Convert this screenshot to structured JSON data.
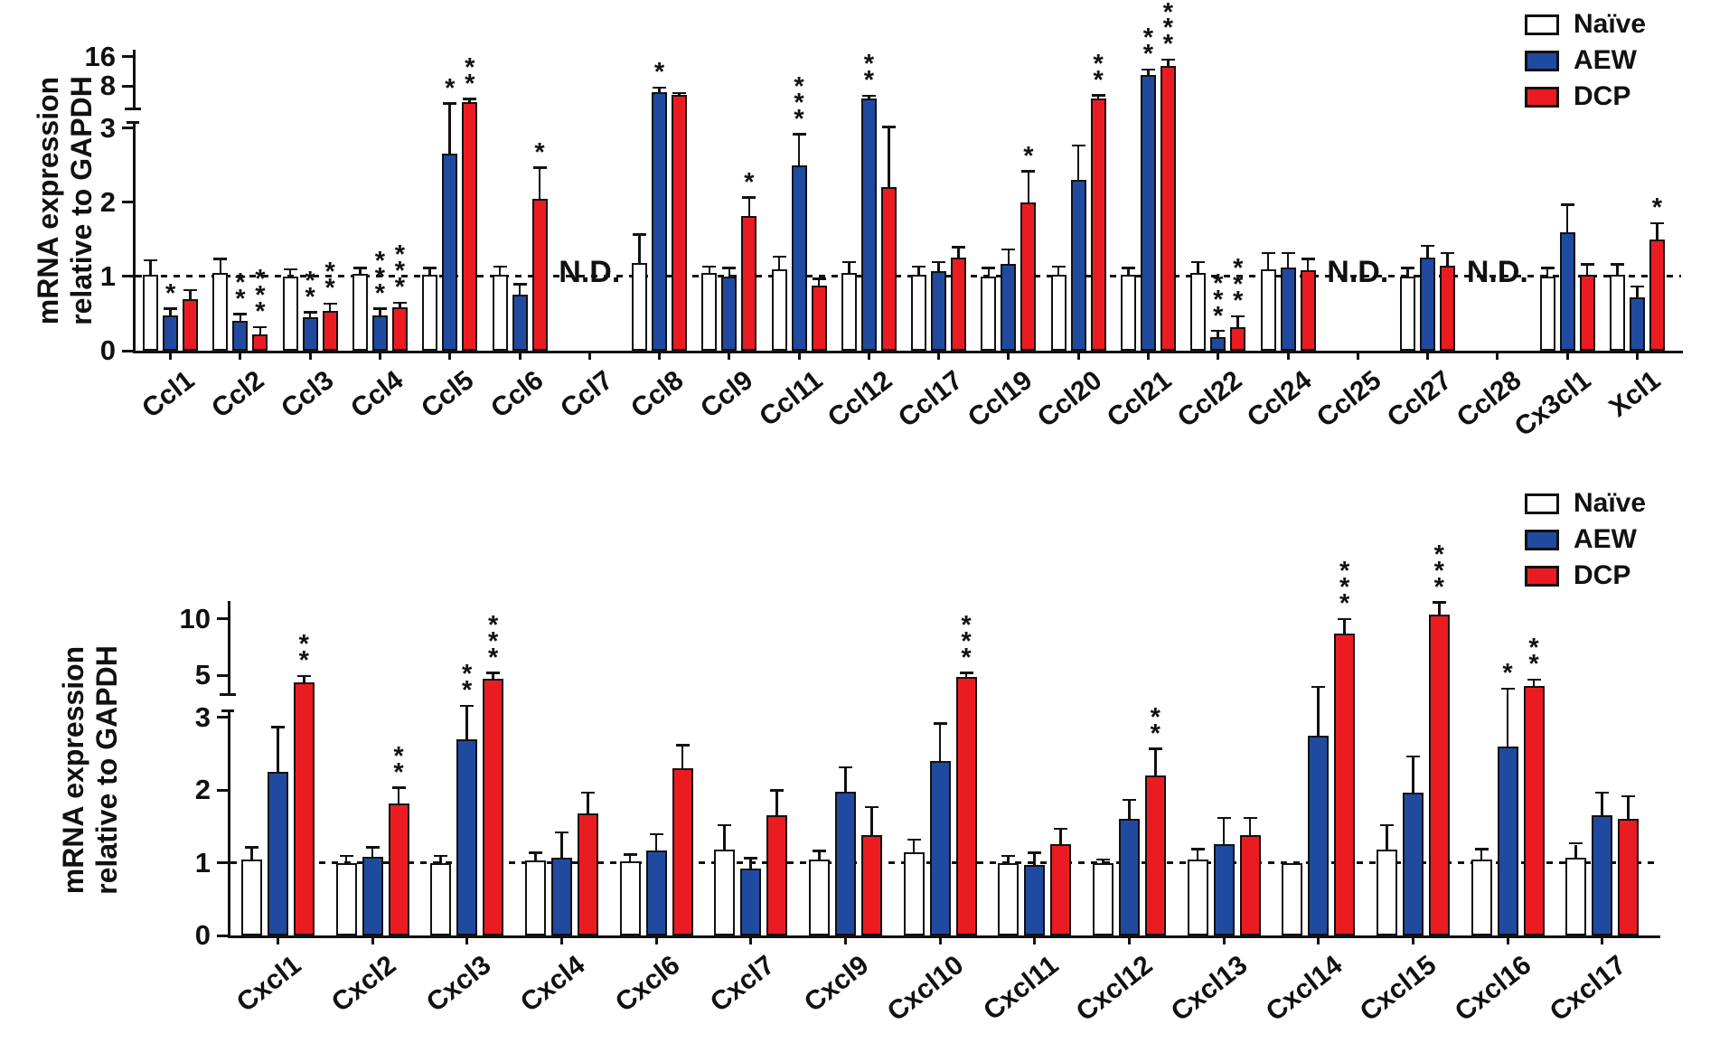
{
  "figure": {
    "background": "#ffffff"
  },
  "chart_data": [
    {
      "type": "bar",
      "ylabel_lines": [
        "mRNA expression",
        "relative to GAPDH"
      ],
      "ylabel": "mRNA expression relative to GAPDH",
      "yticks": [
        0,
        1,
        2,
        3,
        8,
        16
      ],
      "ylim": [
        0,
        18
      ],
      "axis_break": {
        "linear_max": 3,
        "upper_ticks": [
          8,
          16
        ]
      },
      "reference_line": 1,
      "grid": false,
      "legend_position": "top-right",
      "nd_text": "N.D.",
      "legend": [
        {
          "label": "Naïve",
          "color": "#ffffff"
        },
        {
          "label": "AEW",
          "color": "#1f4a9f"
        },
        {
          "label": "DCP",
          "color": "#ea1c22"
        }
      ],
      "groups": [
        {
          "label": "Ccl1",
          "bars": [
            {
              "v": 1.02,
              "e": 1.2
            },
            {
              "v": 0.47,
              "e": 0.55,
              "sig": "*"
            },
            {
              "v": 0.7,
              "e": 0.8
            }
          ]
        },
        {
          "label": "Ccl2",
          "bars": [
            {
              "v": 1.05,
              "e": 1.22
            },
            {
              "v": 0.4,
              "e": 0.48,
              "sig": "**"
            },
            {
              "v": 0.22,
              "e": 0.3,
              "sig": "***"
            }
          ]
        },
        {
          "label": "Ccl3",
          "bars": [
            {
              "v": 1.0,
              "e": 1.08
            },
            {
              "v": 0.45,
              "e": 0.5,
              "sig": "**"
            },
            {
              "v": 0.53,
              "e": 0.62,
              "sig": "**"
            }
          ]
        },
        {
          "label": "Ccl4",
          "bars": [
            {
              "v": 1.03,
              "e": 1.1
            },
            {
              "v": 0.48,
              "e": 0.55,
              "sig": "***"
            },
            {
              "v": 0.58,
              "e": 0.63,
              "sig": "***"
            }
          ]
        },
        {
          "label": "Ccl5",
          "bars": [
            {
              "v": 1.02,
              "e": 1.1
            },
            {
              "v": 2.65,
              "e": 5.2,
              "sig": "*"
            },
            {
              "v": 5.5,
              "e": 5.8,
              "sig": "**"
            }
          ]
        },
        {
          "label": "Ccl6",
          "bars": [
            {
              "v": 1.02,
              "e": 1.12
            },
            {
              "v": 0.75,
              "e": 0.88
            },
            {
              "v": 2.05,
              "e": 2.45,
              "sig": "*"
            }
          ]
        },
        {
          "label": "Ccl7",
          "nd": true
        },
        {
          "label": "Ccl8",
          "bars": [
            {
              "v": 1.18,
              "e": 1.55
            },
            {
              "v": 7.0,
              "e": 7.5,
              "sig": "*"
            },
            {
              "v": 6.5,
              "e": 6.6
            }
          ]
        },
        {
          "label": "Ccl9",
          "bars": [
            {
              "v": 1.05,
              "e": 1.12
            },
            {
              "v": 1.0,
              "e": 1.1
            },
            {
              "v": 1.82,
              "e": 2.05,
              "sig": "*"
            }
          ]
        },
        {
          "label": "Ccl11",
          "bars": [
            {
              "v": 1.1,
              "e": 1.25
            },
            {
              "v": 2.5,
              "e": 2.9,
              "sig": "***"
            },
            {
              "v": 0.88,
              "e": 0.95
            }
          ]
        },
        {
          "label": "Ccl12",
          "bars": [
            {
              "v": 1.05,
              "e": 1.18
            },
            {
              "v": 6.0,
              "e": 6.2,
              "sig": "**"
            },
            {
              "v": 2.2,
              "e": 3.0
            }
          ]
        },
        {
          "label": "Ccl17",
          "bars": [
            {
              "v": 1.02,
              "e": 1.12
            },
            {
              "v": 1.07,
              "e": 1.18
            },
            {
              "v": 1.25,
              "e": 1.38
            }
          ]
        },
        {
          "label": "Ccl19",
          "bars": [
            {
              "v": 1.0,
              "e": 1.1
            },
            {
              "v": 1.17,
              "e": 1.35
            },
            {
              "v": 2.0,
              "e": 2.4,
              "sig": "*"
            }
          ]
        },
        {
          "label": "Ccl20",
          "bars": [
            {
              "v": 1.02,
              "e": 1.12
            },
            {
              "v": 2.3,
              "e": 2.75
            },
            {
              "v": 6.0,
              "e": 6.3,
              "sig": "**"
            }
          ]
        },
        {
          "label": "Ccl21",
          "bars": [
            {
              "v": 1.02,
              "e": 1.1
            },
            {
              "v": 10.5,
              "e": 11.5,
              "sig": "**"
            },
            {
              "v": 13.0,
              "e": 14.5,
              "sig": "***"
            }
          ]
        },
        {
          "label": "Ccl22",
          "bars": [
            {
              "v": 1.05,
              "e": 1.18
            },
            {
              "v": 0.18,
              "e": 0.25,
              "sig": "***"
            },
            {
              "v": 0.32,
              "e": 0.45,
              "sig": "***"
            }
          ]
        },
        {
          "label": "Ccl24",
          "bars": [
            {
              "v": 1.1,
              "e": 1.3
            },
            {
              "v": 1.12,
              "e": 1.3
            },
            {
              "v": 1.08,
              "e": 1.22
            }
          ]
        },
        {
          "label": "Ccl25",
          "nd": true
        },
        {
          "label": "Ccl27",
          "bars": [
            {
              "v": 1.0,
              "e": 1.1
            },
            {
              "v": 1.25,
              "e": 1.4
            },
            {
              "v": 1.15,
              "e": 1.3
            }
          ]
        },
        {
          "label": "Ccl28",
          "nd": true
        },
        {
          "label": "Cx3cl1",
          "bars": [
            {
              "v": 1.0,
              "e": 1.1
            },
            {
              "v": 1.6,
              "e": 1.95
            },
            {
              "v": 1.02,
              "e": 1.15
            }
          ]
        },
        {
          "label": "Xcl1",
          "bars": [
            {
              "v": 1.02,
              "e": 1.15
            },
            {
              "v": 0.72,
              "e": 0.85
            },
            {
              "v": 1.5,
              "e": 1.7,
              "sig": "*"
            }
          ]
        }
      ]
    },
    {
      "type": "bar",
      "ylabel_lines": [
        "mRNA expression",
        "relative to GAPDH"
      ],
      "ylabel": "mRNA expression relative to GAPDH",
      "yticks": [
        0,
        1,
        2,
        3,
        5,
        10
      ],
      "ylim": [
        0,
        13
      ],
      "axis_break": {
        "linear_max": 3,
        "upper_ticks": [
          5,
          10
        ]
      },
      "reference_line": 1,
      "grid": false,
      "legend_position": "top-right",
      "legend": [
        {
          "label": "Naïve",
          "color": "#ffffff"
        },
        {
          "label": "AEW",
          "color": "#1f4a9f"
        },
        {
          "label": "DCP",
          "color": "#ea1c22"
        }
      ],
      "groups": [
        {
          "label": "Cxcl1",
          "bars": [
            {
              "v": 1.05,
              "e": 1.2
            },
            {
              "v": 2.25,
              "e": 2.85
            },
            {
              "v": 4.6,
              "e": 4.9,
              "sig": "**"
            }
          ]
        },
        {
          "label": "Cxcl2",
          "bars": [
            {
              "v": 1.0,
              "e": 1.08
            },
            {
              "v": 1.08,
              "e": 1.2
            },
            {
              "v": 1.82,
              "e": 2.02,
              "sig": "**"
            }
          ]
        },
        {
          "label": "Cxcl3",
          "bars": [
            {
              "v": 1.0,
              "e": 1.08
            },
            {
              "v": 2.7,
              "e": 3.4,
              "sig": "**"
            },
            {
              "v": 4.8,
              "e": 5.1,
              "sig": "***"
            }
          ]
        },
        {
          "label": "Cxcl4",
          "bars": [
            {
              "v": 1.03,
              "e": 1.12
            },
            {
              "v": 1.07,
              "e": 1.4
            },
            {
              "v": 1.68,
              "e": 1.95
            }
          ]
        },
        {
          "label": "Cxcl6",
          "bars": [
            {
              "v": 1.02,
              "e": 1.1
            },
            {
              "v": 1.17,
              "e": 1.38
            },
            {
              "v": 2.3,
              "e": 2.6
            }
          ]
        },
        {
          "label": "Cxcl7",
          "bars": [
            {
              "v": 1.18,
              "e": 1.5
            },
            {
              "v": 0.92,
              "e": 1.05
            },
            {
              "v": 1.65,
              "e": 1.98
            }
          ]
        },
        {
          "label": "Cxcl9",
          "bars": [
            {
              "v": 1.05,
              "e": 1.15
            },
            {
              "v": 1.98,
              "e": 2.3
            },
            {
              "v": 1.38,
              "e": 1.75
            }
          ]
        },
        {
          "label": "Cxcl10",
          "bars": [
            {
              "v": 1.15,
              "e": 1.3
            },
            {
              "v": 2.4,
              "e": 2.9
            },
            {
              "v": 4.9,
              "e": 5.1,
              "sig": "***"
            }
          ]
        },
        {
          "label": "Cxcl11",
          "bars": [
            {
              "v": 1.0,
              "e": 1.08
            },
            {
              "v": 0.97,
              "e": 1.12
            },
            {
              "v": 1.25,
              "e": 1.45
            }
          ]
        },
        {
          "label": "Cxcl12",
          "bars": [
            {
              "v": 1.0,
              "e": 1.03
            },
            {
              "v": 1.6,
              "e": 1.85
            },
            {
              "v": 2.2,
              "e": 2.55,
              "sig": "**"
            }
          ]
        },
        {
          "label": "Cxcl13",
          "bars": [
            {
              "v": 1.05,
              "e": 1.17
            },
            {
              "v": 1.25,
              "e": 1.6
            },
            {
              "v": 1.38,
              "e": 1.6
            }
          ]
        },
        {
          "label": "Cxcl14",
          "bars": [
            {
              "v": 1.0,
              "e": 1.0
            },
            {
              "v": 2.75,
              "e": 4.3
            },
            {
              "v": 8.3,
              "e": 9.8,
              "sig": "***"
            }
          ]
        },
        {
          "label": "Cxcl15",
          "bars": [
            {
              "v": 1.18,
              "e": 1.5
            },
            {
              "v": 1.97,
              "e": 2.45
            },
            {
              "v": 10.5,
              "e": 12.0,
              "sig": "***"
            }
          ]
        },
        {
          "label": "Cxcl16",
          "bars": [
            {
              "v": 1.05,
              "e": 1.17
            },
            {
              "v": 2.6,
              "e": 4.2,
              "sig": "*"
            },
            {
              "v": 4.4,
              "e": 4.7,
              "sig": "**"
            }
          ]
        },
        {
          "label": "Cxcl17",
          "bars": [
            {
              "v": 1.07,
              "e": 1.25
            },
            {
              "v": 1.65,
              "e": 1.95
            },
            {
              "v": 1.6,
              "e": 1.9
            }
          ]
        }
      ]
    }
  ]
}
